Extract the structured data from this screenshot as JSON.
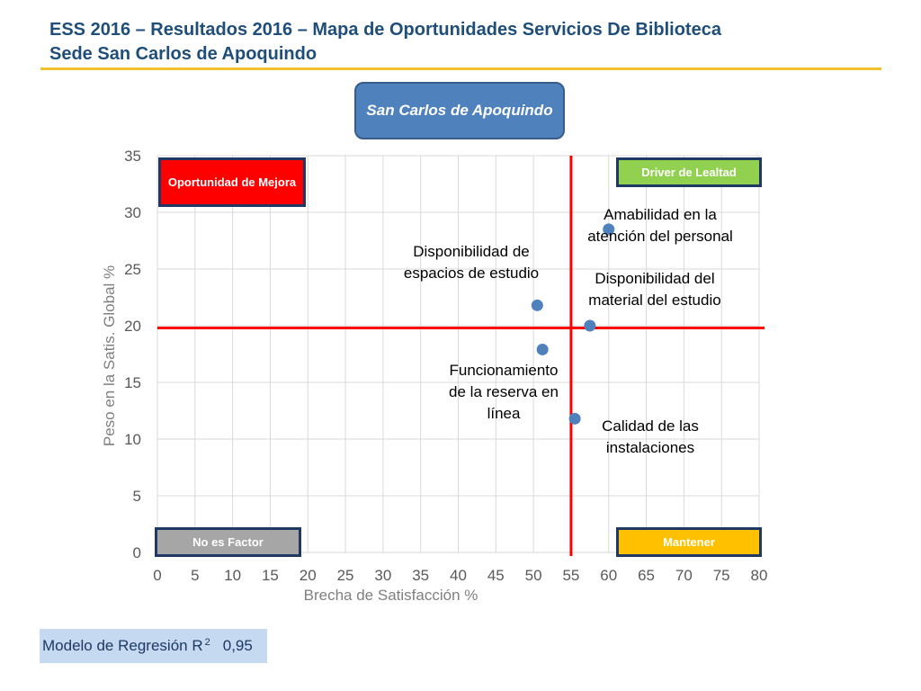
{
  "header": {
    "title_line1": "ESS 2016 – Resultados 2016 – Mapa de Oportunidades Servicios De Biblioteca",
    "title_line2": "Sede San Carlos de Apoquindo",
    "accent_color": "#f2c12e"
  },
  "site_label": "San Carlos de Apoquindo",
  "quadrants": {
    "top_left": "Oportunidad de Mejora",
    "top_right": "Driver de Lealtad",
    "bottom_left": "No es Factor",
    "bottom_right": "Mantener"
  },
  "regression": {
    "label": "Modelo de Regresión R",
    "superscript": "2",
    "value": "0,95"
  },
  "chart_data": {
    "type": "scatter",
    "xlabel": "Brecha de Satisfacción %",
    "ylabel": "Peso en la Satis. Global %",
    "xlim": [
      0,
      80
    ],
    "ylim": [
      0,
      35
    ],
    "x_ticks": [
      0,
      5,
      10,
      15,
      20,
      25,
      30,
      35,
      40,
      45,
      50,
      55,
      60,
      65,
      70,
      75,
      80
    ],
    "y_ticks": [
      0,
      5,
      10,
      15,
      20,
      25,
      30,
      35
    ],
    "grid": true,
    "reference_lines": {
      "x": 55,
      "y": 19.8,
      "color": "#ff0000"
    },
    "points": [
      {
        "x": 60,
        "y": 28.5,
        "label": "Amabilidad en la atención del personal"
      },
      {
        "x": 50.5,
        "y": 21.8,
        "label": "Disponibilidad de espacios de estudio"
      },
      {
        "x": 57.5,
        "y": 20,
        "label": "Disponibilidad del material del estudio"
      },
      {
        "x": 51.2,
        "y": 17.9,
        "label": "Funcionamiento de la reserva en línea"
      },
      {
        "x": 55.5,
        "y": 11.8,
        "label": "Calidad de las instalaciones"
      }
    ],
    "point_color": "#4f81bd"
  }
}
